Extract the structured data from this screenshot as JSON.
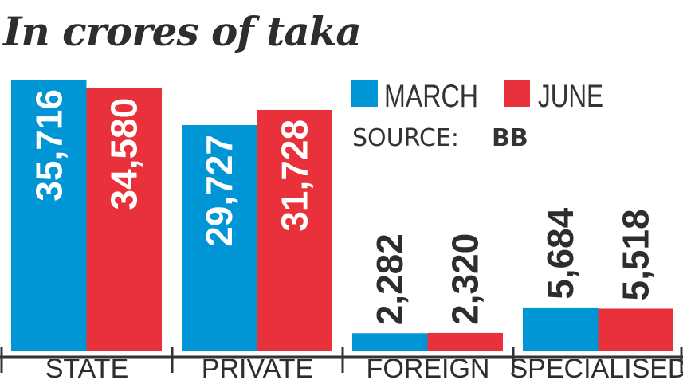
{
  "chart_data": {
    "type": "bar",
    "title": "In crores of taka",
    "categories": [
      "STATE",
      "PRIVATE",
      "FOREIGN",
      "SPECIALISED"
    ],
    "series": [
      {
        "name": "MARCH",
        "color": "#0096d6",
        "values": [
          35716,
          29727,
          2282,
          5684
        ],
        "labels": [
          "35,716",
          "29,727",
          "2,282",
          "5,684"
        ]
      },
      {
        "name": "JUNE",
        "color": "#e8313a",
        "values": [
          34580,
          31728,
          2320,
          5518
        ],
        "labels": [
          "34,580",
          "31,728",
          "2,320",
          "5,518"
        ]
      }
    ],
    "source_label": "SOURCE:",
    "source": "BB",
    "legend_position": "top-right",
    "grid": false
  }
}
